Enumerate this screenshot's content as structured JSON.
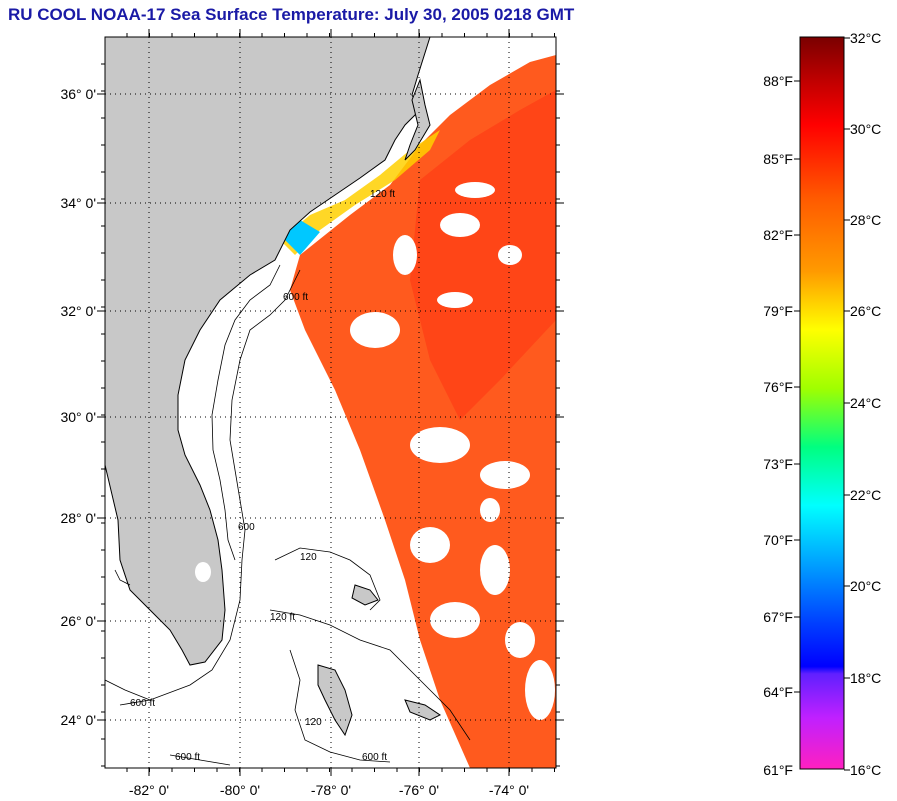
{
  "title": "RU COOL  NOAA-17  Sea Surface Temperature:  July 30, 2005 0218 GMT",
  "map": {
    "lon_range": [
      -83,
      -73
    ],
    "lat_range": [
      23,
      37
    ],
    "lat_labels": [
      "24° 0'",
      "26° 0'",
      "28° 0'",
      "30° 0'",
      "32° 0'",
      "34° 0'",
      "36° 0'"
    ],
    "lon_labels": [
      "-82° 0'",
      "-80° 0'",
      "-78° 0'",
      "-76° 0'",
      "-74° 0'"
    ],
    "contour_labels": [
      "120 ft",
      "600 ft",
      "120",
      "600",
      "600 ft",
      "120",
      "600 ft",
      "120 ft",
      "600 ft"
    ],
    "colors": {
      "land": "#c8c8c8",
      "no_data": "#ffffff",
      "warm": "#ff5a1e",
      "hot": "#ff3c14",
      "gridline": "#000000"
    }
  },
  "colorbar": {
    "celsius_labels": [
      "32°C",
      "30°C",
      "28°C",
      "26°C",
      "24°C",
      "22°C",
      "20°C",
      "18°C",
      "16°C"
    ],
    "fahrenheit_labels": [
      "88°F",
      "85°F",
      "82°F",
      "79°F",
      "76°F",
      "73°F",
      "70°F",
      "67°F",
      "64°F",
      "61°F"
    ]
  }
}
